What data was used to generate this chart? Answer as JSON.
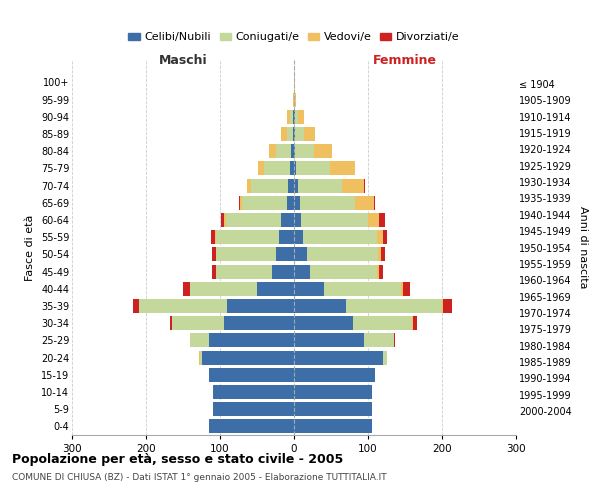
{
  "age_groups": [
    "0-4",
    "5-9",
    "10-14",
    "15-19",
    "20-24",
    "25-29",
    "30-34",
    "35-39",
    "40-44",
    "45-49",
    "50-54",
    "55-59",
    "60-64",
    "65-69",
    "70-74",
    "75-79",
    "80-84",
    "85-89",
    "90-94",
    "95-99",
    "100+"
  ],
  "birth_years": [
    "2000-2004",
    "1995-1999",
    "1990-1994",
    "1985-1989",
    "1980-1984",
    "1975-1979",
    "1970-1974",
    "1965-1969",
    "1960-1964",
    "1955-1959",
    "1950-1954",
    "1945-1949",
    "1940-1944",
    "1935-1939",
    "1930-1934",
    "1925-1929",
    "1920-1924",
    "1915-1919",
    "1910-1914",
    "1905-1909",
    "≤ 1904"
  ],
  "male_celibi": [
    115,
    110,
    110,
    115,
    125,
    115,
    95,
    90,
    50,
    30,
    25,
    20,
    17,
    10,
    8,
    5,
    4,
    2,
    2,
    0,
    0
  ],
  "male_coniugati": [
    0,
    0,
    0,
    0,
    2,
    25,
    70,
    120,
    90,
    75,
    80,
    85,
    75,
    60,
    50,
    35,
    20,
    8,
    3,
    0,
    0
  ],
  "male_vedovi": [
    0,
    0,
    0,
    0,
    2,
    0,
    0,
    0,
    0,
    1,
    1,
    2,
    2,
    3,
    5,
    8,
    10,
    8,
    5,
    1,
    0
  ],
  "male_divorziati": [
    0,
    0,
    0,
    0,
    0,
    1,
    3,
    8,
    10,
    5,
    5,
    5,
    5,
    1,
    1,
    0,
    0,
    0,
    0,
    0,
    0
  ],
  "female_celibi": [
    105,
    105,
    105,
    110,
    120,
    95,
    80,
    70,
    40,
    22,
    18,
    12,
    10,
    8,
    5,
    3,
    2,
    1,
    1,
    0,
    0
  ],
  "female_coniugati": [
    0,
    0,
    0,
    0,
    5,
    40,
    80,
    130,
    105,
    90,
    95,
    100,
    90,
    75,
    60,
    45,
    25,
    12,
    5,
    1,
    0
  ],
  "female_vedovi": [
    0,
    0,
    0,
    0,
    0,
    0,
    1,
    1,
    2,
    3,
    5,
    8,
    15,
    25,
    30,
    35,
    25,
    15,
    8,
    2,
    1
  ],
  "female_divorziati": [
    0,
    0,
    0,
    0,
    0,
    2,
    5,
    12,
    10,
    5,
    5,
    5,
    8,
    1,
    1,
    0,
    0,
    0,
    0,
    0,
    0
  ],
  "color_celibi": "#3d6ea8",
  "color_coniugati": "#c5d89b",
  "color_vedovi": "#f0c060",
  "color_divorziati": "#cc2222",
  "title_main": "Popolazione per età, sesso e stato civile - 2005",
  "title_sub": "COMUNE DI CHIUSA (BZ) - Dati ISTAT 1° gennaio 2005 - Elaborazione TUTTITALIA.IT",
  "ylabel_left": "Fasce di età",
  "ylabel_right": "Anni di nascita",
  "label_maschi": "Maschi",
  "label_femmine": "Femmine",
  "xlim": 300,
  "bg_color": "#ffffff",
  "grid_color": "#cccccc",
  "legend_labels": [
    "Celibi/Nubili",
    "Coniugati/e",
    "Vedovi/e",
    "Divorziati/e"
  ]
}
